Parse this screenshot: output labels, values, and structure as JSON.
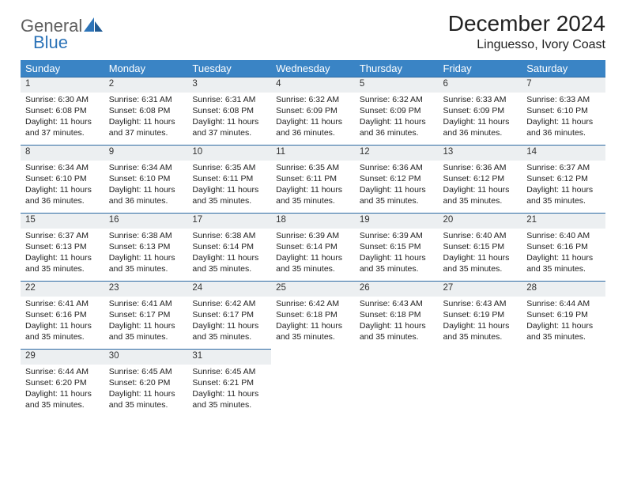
{
  "brand": {
    "name1": "General",
    "name2": "Blue"
  },
  "title": "December 2024",
  "location": "Linguesso, Ivory Coast",
  "colors": {
    "header_bg": "#3a84c5",
    "header_text": "#ffffff",
    "daynum_bg": "#eceff1",
    "daynum_border": "#2d6aa3",
    "text": "#222222",
    "logo_gray": "#5f5f5f",
    "logo_blue": "#2d74b8",
    "background": "#ffffff"
  },
  "typography": {
    "family": "Arial",
    "title_size_pt": 21,
    "location_size_pt": 12,
    "dayhdr_size_pt": 10,
    "cell_size_pt": 8
  },
  "type": "calendar-table",
  "day_headers": [
    "Sunday",
    "Monday",
    "Tuesday",
    "Wednesday",
    "Thursday",
    "Friday",
    "Saturday"
  ],
  "weeks": [
    [
      {
        "n": "1",
        "sunrise": "6:30 AM",
        "sunset": "6:08 PM",
        "daylight": "11 hours and 37 minutes."
      },
      {
        "n": "2",
        "sunrise": "6:31 AM",
        "sunset": "6:08 PM",
        "daylight": "11 hours and 37 minutes."
      },
      {
        "n": "3",
        "sunrise": "6:31 AM",
        "sunset": "6:08 PM",
        "daylight": "11 hours and 37 minutes."
      },
      {
        "n": "4",
        "sunrise": "6:32 AM",
        "sunset": "6:09 PM",
        "daylight": "11 hours and 36 minutes."
      },
      {
        "n": "5",
        "sunrise": "6:32 AM",
        "sunset": "6:09 PM",
        "daylight": "11 hours and 36 minutes."
      },
      {
        "n": "6",
        "sunrise": "6:33 AM",
        "sunset": "6:09 PM",
        "daylight": "11 hours and 36 minutes."
      },
      {
        "n": "7",
        "sunrise": "6:33 AM",
        "sunset": "6:10 PM",
        "daylight": "11 hours and 36 minutes."
      }
    ],
    [
      {
        "n": "8",
        "sunrise": "6:34 AM",
        "sunset": "6:10 PM",
        "daylight": "11 hours and 36 minutes."
      },
      {
        "n": "9",
        "sunrise": "6:34 AM",
        "sunset": "6:10 PM",
        "daylight": "11 hours and 36 minutes."
      },
      {
        "n": "10",
        "sunrise": "6:35 AM",
        "sunset": "6:11 PM",
        "daylight": "11 hours and 35 minutes."
      },
      {
        "n": "11",
        "sunrise": "6:35 AM",
        "sunset": "6:11 PM",
        "daylight": "11 hours and 35 minutes."
      },
      {
        "n": "12",
        "sunrise": "6:36 AM",
        "sunset": "6:12 PM",
        "daylight": "11 hours and 35 minutes."
      },
      {
        "n": "13",
        "sunrise": "6:36 AM",
        "sunset": "6:12 PM",
        "daylight": "11 hours and 35 minutes."
      },
      {
        "n": "14",
        "sunrise": "6:37 AM",
        "sunset": "6:12 PM",
        "daylight": "11 hours and 35 minutes."
      }
    ],
    [
      {
        "n": "15",
        "sunrise": "6:37 AM",
        "sunset": "6:13 PM",
        "daylight": "11 hours and 35 minutes."
      },
      {
        "n": "16",
        "sunrise": "6:38 AM",
        "sunset": "6:13 PM",
        "daylight": "11 hours and 35 minutes."
      },
      {
        "n": "17",
        "sunrise": "6:38 AM",
        "sunset": "6:14 PM",
        "daylight": "11 hours and 35 minutes."
      },
      {
        "n": "18",
        "sunrise": "6:39 AM",
        "sunset": "6:14 PM",
        "daylight": "11 hours and 35 minutes."
      },
      {
        "n": "19",
        "sunrise": "6:39 AM",
        "sunset": "6:15 PM",
        "daylight": "11 hours and 35 minutes."
      },
      {
        "n": "20",
        "sunrise": "6:40 AM",
        "sunset": "6:15 PM",
        "daylight": "11 hours and 35 minutes."
      },
      {
        "n": "21",
        "sunrise": "6:40 AM",
        "sunset": "6:16 PM",
        "daylight": "11 hours and 35 minutes."
      }
    ],
    [
      {
        "n": "22",
        "sunrise": "6:41 AM",
        "sunset": "6:16 PM",
        "daylight": "11 hours and 35 minutes."
      },
      {
        "n": "23",
        "sunrise": "6:41 AM",
        "sunset": "6:17 PM",
        "daylight": "11 hours and 35 minutes."
      },
      {
        "n": "24",
        "sunrise": "6:42 AM",
        "sunset": "6:17 PM",
        "daylight": "11 hours and 35 minutes."
      },
      {
        "n": "25",
        "sunrise": "6:42 AM",
        "sunset": "6:18 PM",
        "daylight": "11 hours and 35 minutes."
      },
      {
        "n": "26",
        "sunrise": "6:43 AM",
        "sunset": "6:18 PM",
        "daylight": "11 hours and 35 minutes."
      },
      {
        "n": "27",
        "sunrise": "6:43 AM",
        "sunset": "6:19 PM",
        "daylight": "11 hours and 35 minutes."
      },
      {
        "n": "28",
        "sunrise": "6:44 AM",
        "sunset": "6:19 PM",
        "daylight": "11 hours and 35 minutes."
      }
    ],
    [
      {
        "n": "29",
        "sunrise": "6:44 AM",
        "sunset": "6:20 PM",
        "daylight": "11 hours and 35 minutes."
      },
      {
        "n": "30",
        "sunrise": "6:45 AM",
        "sunset": "6:20 PM",
        "daylight": "11 hours and 35 minutes."
      },
      {
        "n": "31",
        "sunrise": "6:45 AM",
        "sunset": "6:21 PM",
        "daylight": "11 hours and 35 minutes."
      },
      null,
      null,
      null,
      null
    ]
  ],
  "labels": {
    "sunrise": "Sunrise: ",
    "sunset": "Sunset: ",
    "daylight": "Daylight: "
  }
}
